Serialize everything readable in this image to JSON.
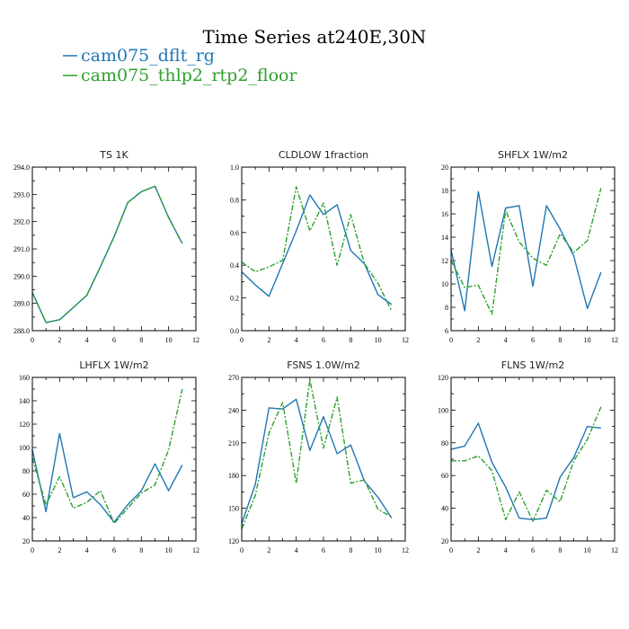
{
  "figure": {
    "title": "Time Series at240E,30N"
  },
  "legend": [
    {
      "label": "cam075_dflt_rg",
      "color": "#1f77b4"
    },
    {
      "label": "cam075_thlp2_rtp2_floor",
      "color": "#2ca02c"
    }
  ],
  "chart_data": [
    {
      "type": "line",
      "title": "TS   1K",
      "x": [
        0,
        1,
        2,
        3,
        4,
        5,
        6,
        7,
        8,
        9,
        10,
        11
      ],
      "xlim": [
        0,
        12
      ],
      "xticks": [
        0,
        2,
        4,
        6,
        8,
        10,
        12
      ],
      "ylim": [
        288,
        294
      ],
      "yticks": [
        "288.0",
        "289.0",
        "290.0",
        "291.0",
        "292.0",
        "293.0",
        "294.0"
      ],
      "series": [
        {
          "name": "cam075_dflt_rg",
          "color": "#1f77b4",
          "dash": "",
          "values": [
            289.4,
            288.3,
            288.4,
            288.85,
            289.3,
            290.35,
            291.45,
            292.7,
            293.1,
            293.3,
            292.15,
            291.2
          ]
        },
        {
          "name": "cam075_thlp2_rtp2_floor",
          "color": "#2ca02c",
          "dash": "6,2,2,2",
          "values": [
            289.4,
            288.3,
            288.4,
            288.85,
            289.3,
            290.35,
            291.45,
            292.7,
            293.1,
            293.3,
            292.15,
            291.2
          ]
        }
      ]
    },
    {
      "type": "line",
      "title": "CLDLOW   1fraction",
      "x": [
        0,
        1,
        2,
        3,
        4,
        5,
        6,
        7,
        8,
        9,
        10,
        11
      ],
      "xlim": [
        0,
        12
      ],
      "xticks": [
        0,
        2,
        4,
        6,
        8,
        10,
        12
      ],
      "ylim": [
        0,
        1
      ],
      "yticks": [
        "0.0",
        "0.2",
        "0.4",
        "0.6",
        "0.8",
        "1.0"
      ],
      "series": [
        {
          "name": "cam075_dflt_rg",
          "color": "#1f77b4",
          "dash": "",
          "values": [
            0.36,
            0.28,
            0.21,
            0.41,
            0.61,
            0.83,
            0.71,
            0.77,
            0.49,
            0.41,
            0.22,
            0.16
          ]
        },
        {
          "name": "cam075_thlp2_rtp2_floor",
          "color": "#2ca02c",
          "dash": "6,2,2,2",
          "values": [
            0.42,
            0.36,
            0.39,
            0.43,
            0.88,
            0.61,
            0.78,
            0.4,
            0.71,
            0.41,
            0.29,
            0.12
          ]
        }
      ]
    },
    {
      "type": "line",
      "title": "SHFLX   1W/m2",
      "x": [
        0,
        1,
        2,
        3,
        4,
        5,
        6,
        7,
        8,
        9,
        10,
        11
      ],
      "xlim": [
        0,
        12
      ],
      "xticks": [
        0,
        2,
        4,
        6,
        8,
        10,
        12
      ],
      "ylim": [
        6,
        20
      ],
      "yticks": [
        "6",
        "8",
        "10",
        "12",
        "14",
        "16",
        "18",
        "20"
      ],
      "series": [
        {
          "name": "cam075_dflt_rg",
          "color": "#1f77b4",
          "dash": "",
          "values": [
            12.9,
            7.7,
            17.9,
            11.5,
            16.5,
            16.7,
            9.8,
            16.7,
            14.7,
            12.4,
            7.9,
            11.0
          ]
        },
        {
          "name": "cam075_thlp2_rtp2_floor",
          "color": "#2ca02c",
          "dash": "6,2,2,2",
          "values": [
            12.0,
            9.7,
            9.9,
            7.4,
            16.3,
            13.6,
            12.2,
            11.6,
            14.3,
            12.7,
            13.7,
            18.2
          ]
        }
      ]
    },
    {
      "type": "line",
      "title": "LHFLX   1W/m2",
      "x": [
        0,
        1,
        2,
        3,
        4,
        5,
        6,
        7,
        8,
        9,
        10,
        11
      ],
      "xlim": [
        0,
        12
      ],
      "xticks": [
        0,
        2,
        4,
        6,
        8,
        10,
        12
      ],
      "ylim": [
        20,
        160
      ],
      "yticks": [
        "20",
        "40",
        "60",
        "80",
        "100",
        "120",
        "140",
        "160"
      ],
      "series": [
        {
          "name": "cam075_dflt_rg",
          "color": "#1f77b4",
          "dash": "",
          "values": [
            98,
            45,
            112,
            57,
            62,
            51,
            36,
            51,
            63,
            86,
            63,
            85
          ]
        },
        {
          "name": "cam075_thlp2_rtp2_floor",
          "color": "#2ca02c",
          "dash": "6,2,2,2",
          "values": [
            91,
            51,
            75,
            48,
            53,
            63,
            35,
            48,
            61,
            68,
            98,
            150
          ]
        }
      ]
    },
    {
      "type": "line",
      "title": "FSNS   1.0W/m2",
      "x": [
        0,
        1,
        2,
        3,
        4,
        5,
        6,
        7,
        8,
        9,
        10,
        11
      ],
      "xlim": [
        0,
        12
      ],
      "xticks": [
        0,
        2,
        4,
        6,
        8,
        10,
        12
      ],
      "ylim": [
        120,
        270
      ],
      "yticks": [
        "120",
        "150",
        "180",
        "210",
        "240",
        "270"
      ],
      "series": [
        {
          "name": "cam075_dflt_rg",
          "color": "#1f77b4",
          "dash": "",
          "values": [
            136,
            172,
            242,
            241,
            250,
            203,
            234,
            200,
            208,
            175,
            160,
            141
          ]
        },
        {
          "name": "cam075_thlp2_rtp2_floor",
          "color": "#2ca02c",
          "dash": "6,2,2,2",
          "values": [
            131,
            162,
            219,
            247,
            173,
            268,
            205,
            252,
            173,
            176,
            149,
            142
          ]
        }
      ]
    },
    {
      "type": "line",
      "title": "FLNS   1W/m2",
      "x": [
        0,
        1,
        2,
        3,
        4,
        5,
        6,
        7,
        8,
        9,
        10,
        11
      ],
      "xlim": [
        0,
        12
      ],
      "xticks": [
        0,
        2,
        4,
        6,
        8,
        10,
        12
      ],
      "ylim": [
        20,
        120
      ],
      "yticks": [
        "20",
        "40",
        "60",
        "80",
        "100",
        "120"
      ],
      "series": [
        {
          "name": "cam075_dflt_rg",
          "color": "#1f77b4",
          "dash": "",
          "values": [
            76,
            78,
            92,
            68,
            53,
            34,
            33,
            34,
            59,
            71,
            90,
            89
          ]
        },
        {
          "name": "cam075_thlp2_rtp2_floor",
          "color": "#2ca02c",
          "dash": "6,2,2,2",
          "values": [
            69,
            69,
            72,
            63,
            33,
            50,
            32,
            51,
            44,
            69,
            82,
            102
          ]
        }
      ]
    }
  ]
}
